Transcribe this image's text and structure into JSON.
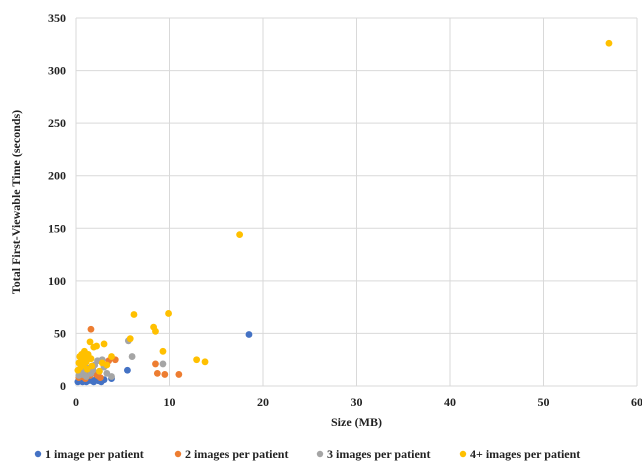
{
  "chart_data": {
    "type": "scatter",
    "title": "",
    "xlabel": "Size (MB)",
    "ylabel": "Total First-Viewable Time (seconds)",
    "xlim": [
      0,
      60
    ],
    "ylim": [
      0,
      350
    ],
    "x_ticks": [
      "0",
      "10",
      "20",
      "30",
      "40",
      "50",
      "60"
    ],
    "y_ticks": [
      "0",
      "50",
      "100",
      "150",
      "200",
      "250",
      "300",
      "350"
    ],
    "grid": true,
    "legend_position": "bottom",
    "series": [
      {
        "name": "1 image per patient",
        "color": "#4472c4",
        "points": [
          [
            0.2,
            4
          ],
          [
            0.3,
            5
          ],
          [
            0.4,
            6
          ],
          [
            0.5,
            5
          ],
          [
            0.6,
            7
          ],
          [
            0.7,
            4
          ],
          [
            0.8,
            6
          ],
          [
            0.9,
            5
          ],
          [
            1.0,
            6
          ],
          [
            1.1,
            4
          ],
          [
            1.2,
            7
          ],
          [
            1.3,
            5
          ],
          [
            1.5,
            6
          ],
          [
            1.7,
            5
          ],
          [
            1.9,
            4
          ],
          [
            2.1,
            6
          ],
          [
            2.4,
            5
          ],
          [
            2.7,
            4
          ],
          [
            3.0,
            6
          ],
          [
            3.8,
            7
          ],
          [
            5.5,
            15
          ],
          [
            18.5,
            49
          ]
        ]
      },
      {
        "name": "2 images per patient",
        "color": "#ed7d31",
        "points": [
          [
            0.3,
            8
          ],
          [
            0.5,
            10
          ],
          [
            0.6,
            9
          ],
          [
            0.8,
            12
          ],
          [
            1.0,
            7
          ],
          [
            1.2,
            15
          ],
          [
            1.5,
            10
          ],
          [
            1.6,
            54
          ],
          [
            1.8,
            18
          ],
          [
            2.0,
            12
          ],
          [
            2.3,
            10
          ],
          [
            2.6,
            8
          ],
          [
            3.0,
            19
          ],
          [
            3.5,
            24
          ],
          [
            4.2,
            25
          ],
          [
            8.5,
            21
          ],
          [
            8.7,
            12
          ],
          [
            9.5,
            11
          ],
          [
            11.0,
            11
          ]
        ]
      },
      {
        "name": "3 images per patient",
        "color": "#a5a5a5",
        "points": [
          [
            0.3,
            10
          ],
          [
            0.5,
            12
          ],
          [
            0.7,
            11
          ],
          [
            0.9,
            14
          ],
          [
            1.1,
            9
          ],
          [
            1.3,
            17
          ],
          [
            1.6,
            12
          ],
          [
            1.8,
            15
          ],
          [
            2.0,
            20
          ],
          [
            2.3,
            24
          ],
          [
            2.5,
            14
          ],
          [
            2.8,
            25
          ],
          [
            3.0,
            18
          ],
          [
            3.3,
            12
          ],
          [
            3.8,
            9
          ],
          [
            5.6,
            43
          ],
          [
            6.0,
            28
          ],
          [
            9.3,
            21
          ]
        ]
      },
      {
        "name": "4+ images per patient",
        "color": "#ffc000",
        "points": [
          [
            0.2,
            15
          ],
          [
            0.3,
            22
          ],
          [
            0.4,
            28
          ],
          [
            0.5,
            18
          ],
          [
            0.6,
            30
          ],
          [
            0.7,
            25
          ],
          [
            0.8,
            20
          ],
          [
            0.9,
            33
          ],
          [
            1.0,
            27
          ],
          [
            1.1,
            23
          ],
          [
            1.2,
            16
          ],
          [
            1.3,
            30
          ],
          [
            1.5,
            42
          ],
          [
            1.6,
            26
          ],
          [
            1.7,
            19
          ],
          [
            1.9,
            37
          ],
          [
            2.2,
            38
          ],
          [
            2.5,
            14
          ],
          [
            2.8,
            22
          ],
          [
            3.0,
            40
          ],
          [
            3.3,
            20
          ],
          [
            3.8,
            28
          ],
          [
            5.8,
            45
          ],
          [
            6.2,
            68
          ],
          [
            8.3,
            56
          ],
          [
            8.5,
            52
          ],
          [
            9.3,
            33
          ],
          [
            9.9,
            69
          ],
          [
            12.9,
            25
          ],
          [
            13.8,
            23
          ],
          [
            17.5,
            144
          ],
          [
            57,
            326
          ]
        ]
      }
    ]
  }
}
